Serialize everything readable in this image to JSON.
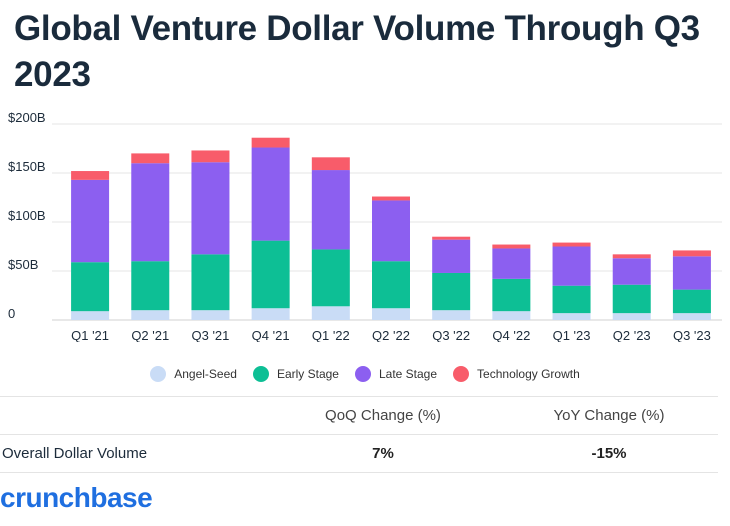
{
  "title": "Global Venture Dollar Volume Through Q3 2023",
  "colors": {
    "angel_seed": "#c9dcf6",
    "early_stage": "#0dbf95",
    "late_stage": "#8c5ff0",
    "technology_growth": "#f85c6a",
    "grid": "#e6e6e6",
    "text": "#1c2b3a",
    "brand": "#1f6fe0"
  },
  "chart_data": {
    "type": "bar",
    "stacked": true,
    "categories": [
      "Q1 '21",
      "Q2 '21",
      "Q3 '21",
      "Q4 '21",
      "Q1 '22",
      "Q2 '22",
      "Q3 '22",
      "Q4 '22",
      "Q1 '23",
      "Q2 '23",
      "Q3 '23"
    ],
    "series": [
      {
        "name": "Angel-Seed",
        "color": "#c9dcf6",
        "values": [
          9,
          10,
          10,
          12,
          14,
          12,
          10,
          9,
          7,
          7,
          7
        ]
      },
      {
        "name": "Early Stage",
        "color": "#0dbf95",
        "values": [
          50,
          50,
          57,
          69,
          58,
          48,
          38,
          33,
          28,
          29,
          24
        ]
      },
      {
        "name": "Late Stage",
        "color": "#8c5ff0",
        "values": [
          84,
          100,
          94,
          95,
          81,
          62,
          34,
          31,
          40,
          27,
          34
        ]
      },
      {
        "name": "Technology Growth",
        "color": "#f85c6a",
        "values": [
          9,
          10,
          12,
          10,
          13,
          4,
          3,
          4,
          4,
          4,
          6
        ]
      }
    ],
    "y_ticks": [
      "0",
      "$50B",
      "$100B",
      "$150B",
      "$200B"
    ],
    "ylim": [
      0,
      200
    ],
    "grid": true,
    "legend_position": "bottom"
  },
  "legend": [
    "Angel-Seed",
    "Early Stage",
    "Late Stage",
    "Technology Growth"
  ],
  "table": {
    "headers": [
      "",
      "QoQ Change (%)",
      "YoY Change (%)"
    ],
    "rows": [
      {
        "label": "Overall Dollar Volume",
        "qoq": "7%",
        "yoy": "-15%"
      }
    ]
  },
  "brand": "crunchbase"
}
